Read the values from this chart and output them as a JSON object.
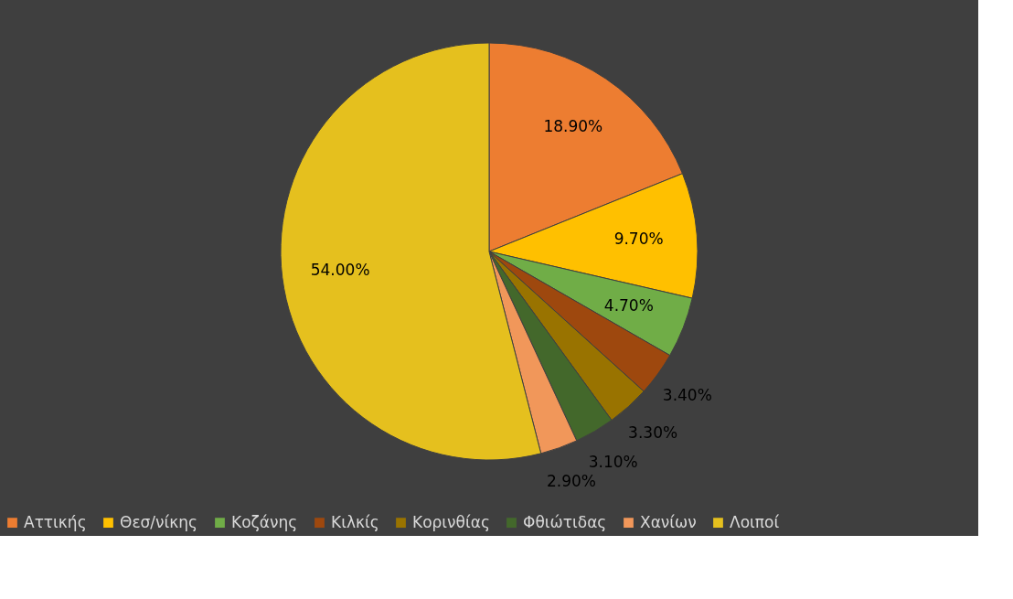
{
  "chart_data": {
    "type": "pie",
    "categories": [
      "Αττικής",
      "Θεσ/νίκης",
      "Κοζάνης",
      "Κιλκίς",
      "Κορινθίας",
      "Φθιώτιδας",
      "Χανίων",
      "Λοιποί"
    ],
    "values": [
      18.9,
      9.7,
      4.7,
      3.4,
      3.3,
      3.1,
      2.9,
      54.0
    ],
    "colors": [
      "#ed7d31",
      "#ffc000",
      "#70ad47",
      "#9e480e",
      "#997300",
      "#43682b",
      "#f1975a",
      "#e5c01e"
    ],
    "value_labels": [
      "18.90%",
      "9.70%",
      "4.70%",
      "3.40%",
      "3.30%",
      "3.10%",
      "2.90%",
      "54.00%"
    ],
    "legend": "bottom"
  }
}
